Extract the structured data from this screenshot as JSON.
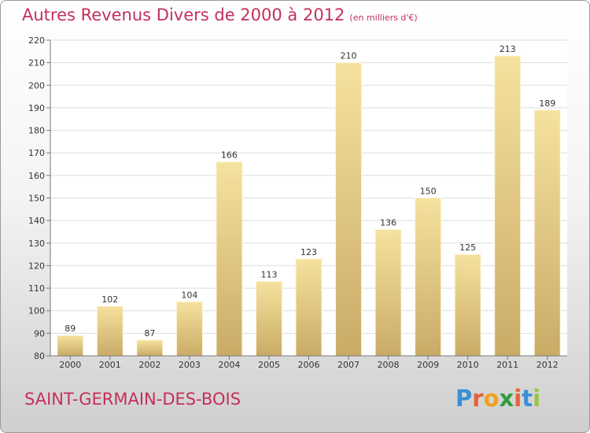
{
  "chart_data": {
    "type": "bar",
    "title": "Autres Revenus Divers de 2000 à 2012",
    "subtitle": "(en milliers d'€)",
    "xlabel": "",
    "ylabel": "",
    "categories": [
      "2000",
      "2001",
      "2002",
      "2003",
      "2004",
      "2005",
      "2006",
      "2007",
      "2008",
      "2009",
      "2010",
      "2011",
      "2012"
    ],
    "values": [
      89,
      102,
      87,
      104,
      166,
      113,
      123,
      210,
      136,
      150,
      125,
      213,
      189
    ],
    "ylim": [
      80,
      220
    ],
    "yticks": [
      80,
      90,
      100,
      110,
      120,
      130,
      140,
      150,
      160,
      170,
      180,
      190,
      200,
      210,
      220
    ],
    "grid": true,
    "data_labels": true,
    "colors": {
      "bar_light": "#f5e29e",
      "bar_dark": "#c9ab66",
      "grid": "#dddddd",
      "accent": "#c4305a"
    }
  },
  "footer": {
    "place": "SAINT-GERMAIN-DES-BOIS",
    "logo_letters": [
      "P",
      "r",
      "o",
      "x",
      "i",
      "t",
      "i"
    ],
    "logo_colors": [
      "#3a8fd6",
      "#e8603c",
      "#f0a020",
      "#2f9e3a",
      "#e8603c",
      "#3a8fd6",
      "#9bc53d"
    ]
  }
}
